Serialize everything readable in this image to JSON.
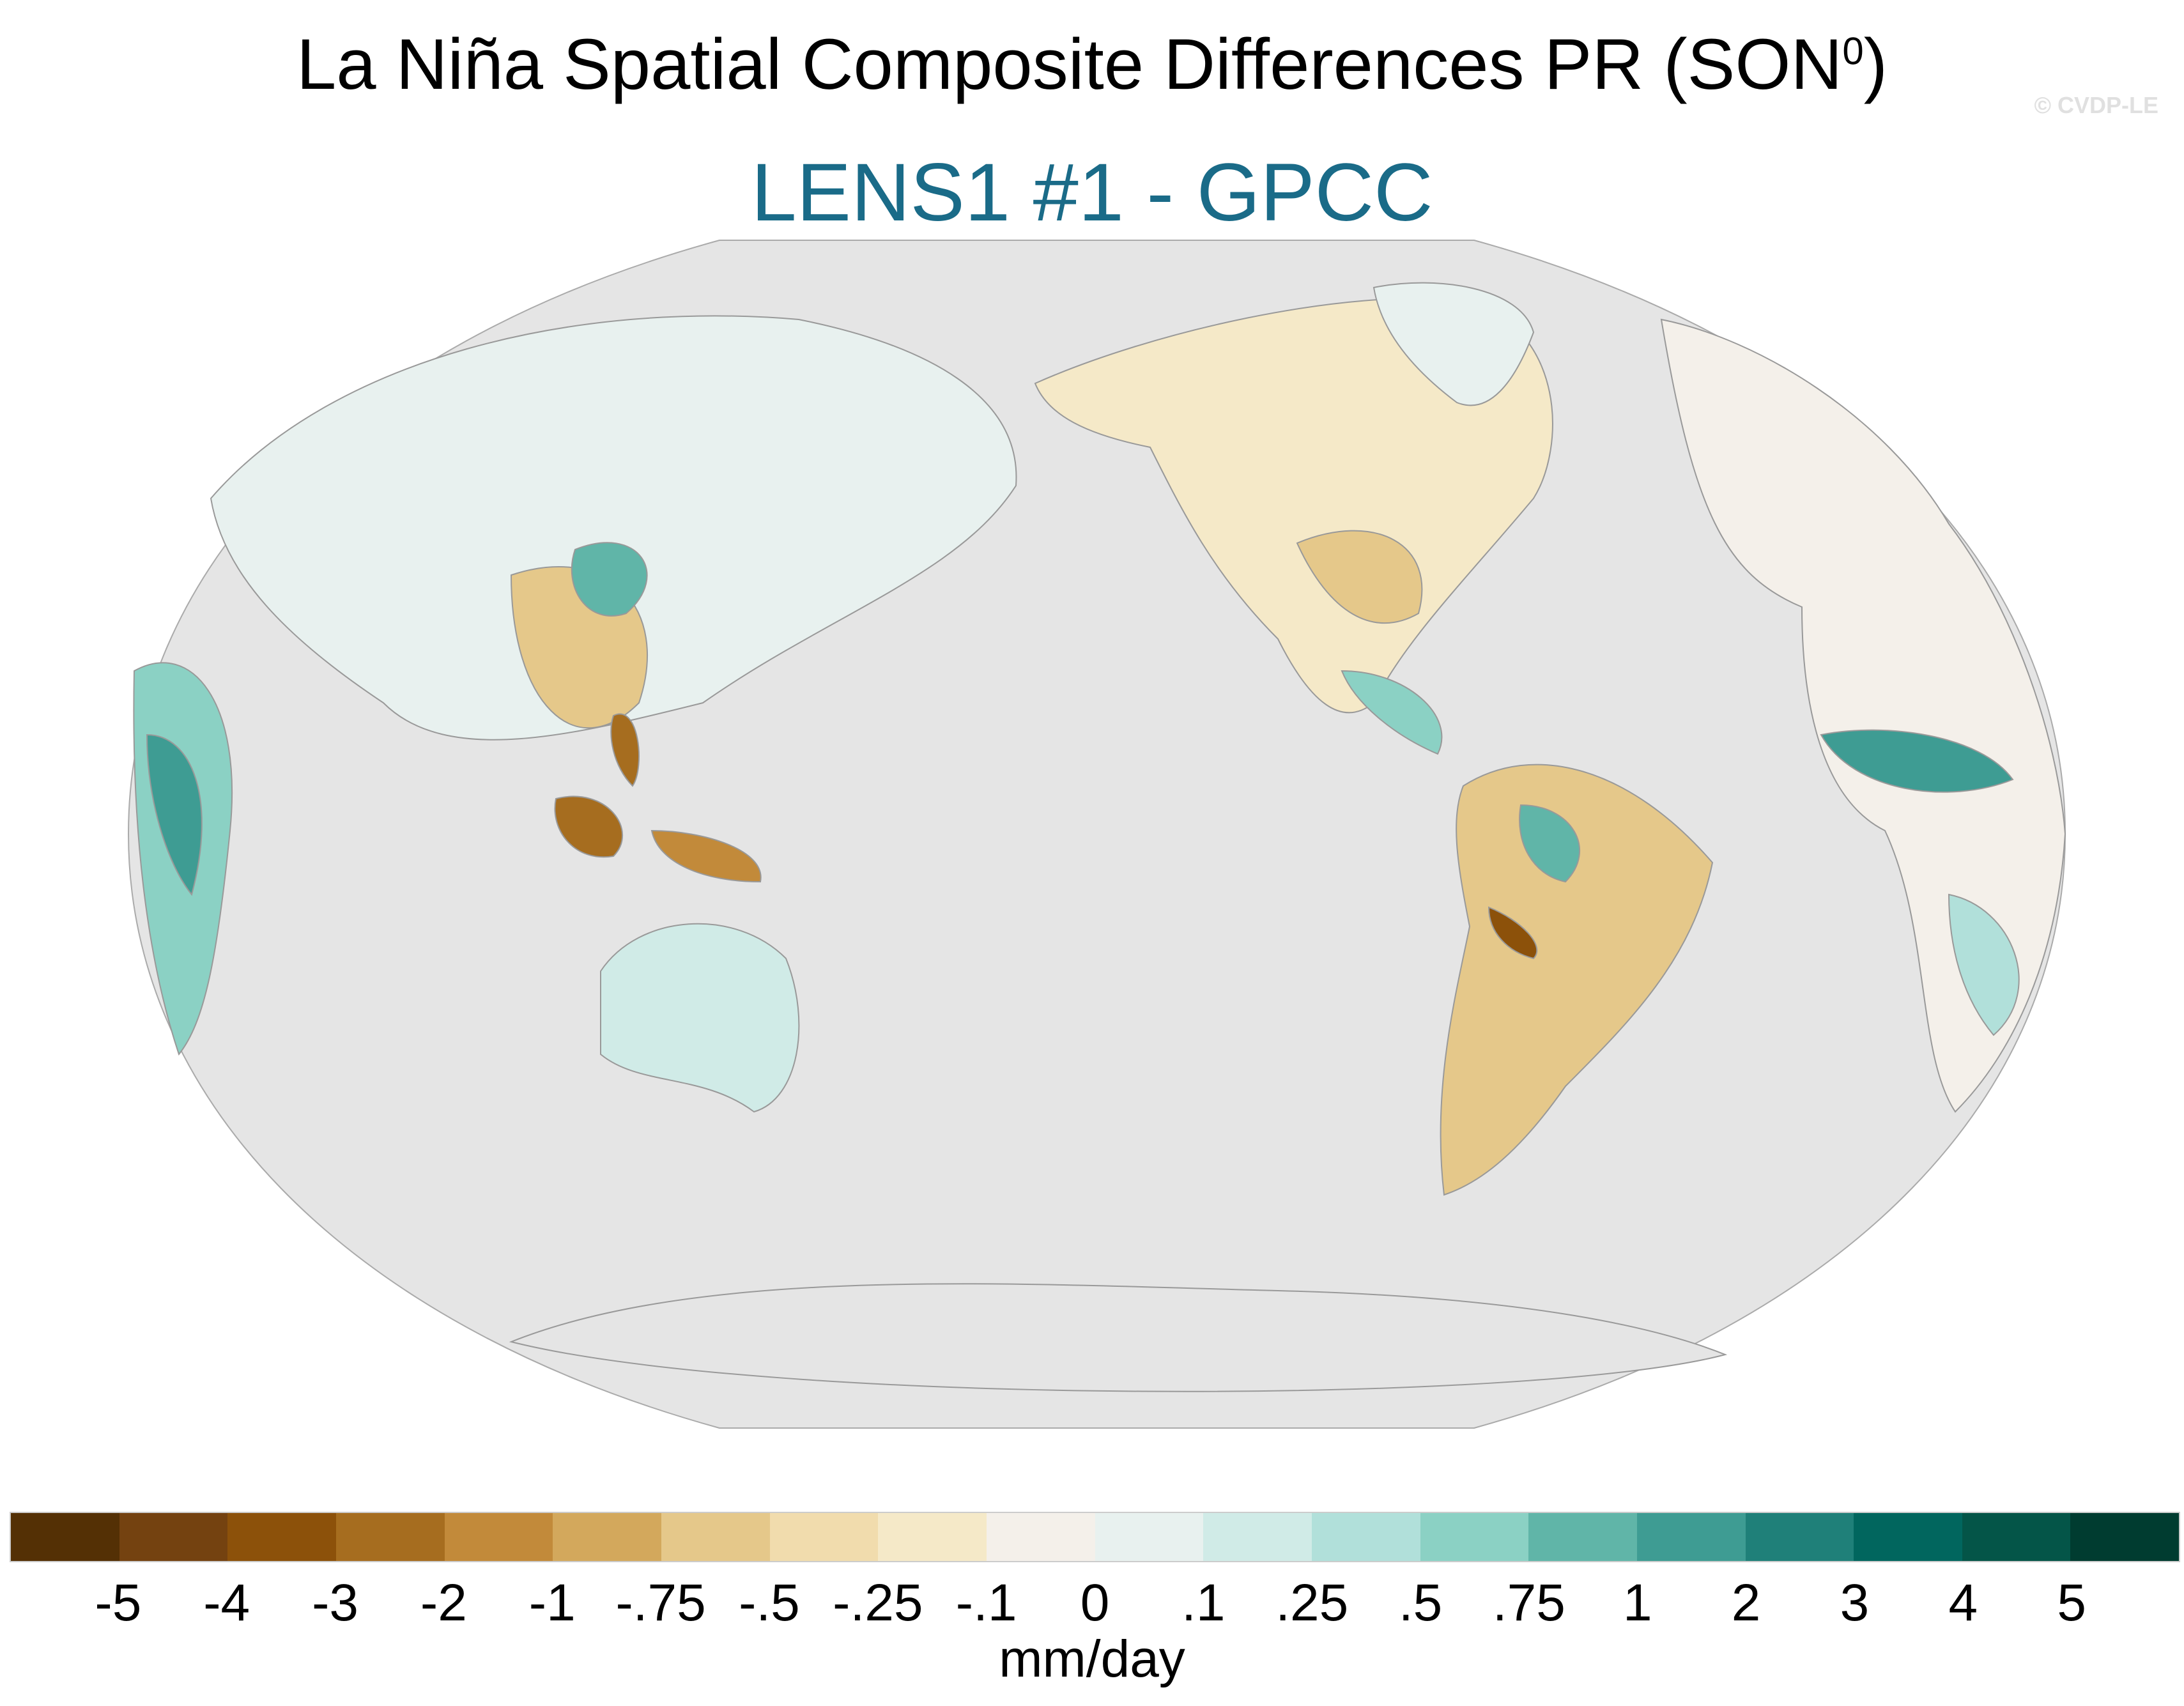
{
  "title": {
    "main": "La Niña Spatial Composite Differences PR (SON",
    "superscript": "0",
    "close": ")"
  },
  "subtitle": "LENS1 #1 - GPCC",
  "watermark": "© CVDP-LE",
  "map": {
    "projection": "Robinson",
    "center_longitude": "Pacific",
    "ocean_color": "#e5e5e5",
    "coast_color": "#999999"
  },
  "colorbar": {
    "units": "mm/day",
    "labels": [
      "-5",
      "-4",
      "-3",
      "-2",
      "-1",
      "-.75",
      "-.5",
      "-.25",
      "-.1",
      "0",
      ".1",
      ".25",
      ".5",
      ".75",
      "1",
      "2",
      "3",
      "4",
      "5"
    ],
    "colors": [
      "#543005",
      "#744210",
      "#8c510a",
      "#a66d1f",
      "#c28a3a",
      "#d3a85c",
      "#e5c88a",
      "#f1dcad",
      "#f5e9c8",
      "#f4f0ea",
      "#e8f1ef",
      "#d0ebe7",
      "#b1e0da",
      "#8bd1c4",
      "#60b5a8",
      "#3e9c93",
      "#1f8079",
      "#01665e",
      "#045548",
      "#003c30"
    ]
  }
}
